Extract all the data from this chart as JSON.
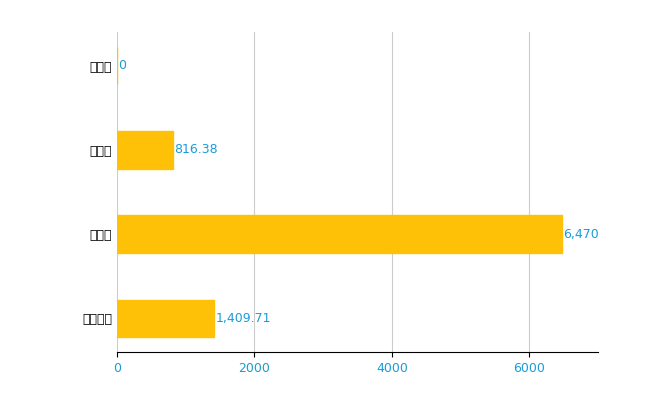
{
  "categories": [
    "全国平均",
    "県最大",
    "県平均",
    "田子町"
  ],
  "values": [
    1409.71,
    6470,
    816.38,
    0
  ],
  "labels": [
    "1,409.71",
    "6,470",
    "816.38",
    "0"
  ],
  "bar_color": "#FFC107",
  "background_color": "#ffffff",
  "xlim": [
    0,
    7000
  ],
  "xticks": [
    0,
    2000,
    4000,
    6000
  ],
  "xtick_labels": [
    "0",
    "2000",
    "4000",
    "6000"
  ],
  "grid_color": "#cccccc",
  "label_color": "#1a9cd8",
  "tick_color": "#1a9cd8",
  "label_fontsize": 9,
  "tick_fontsize": 9,
  "bar_height": 0.45
}
